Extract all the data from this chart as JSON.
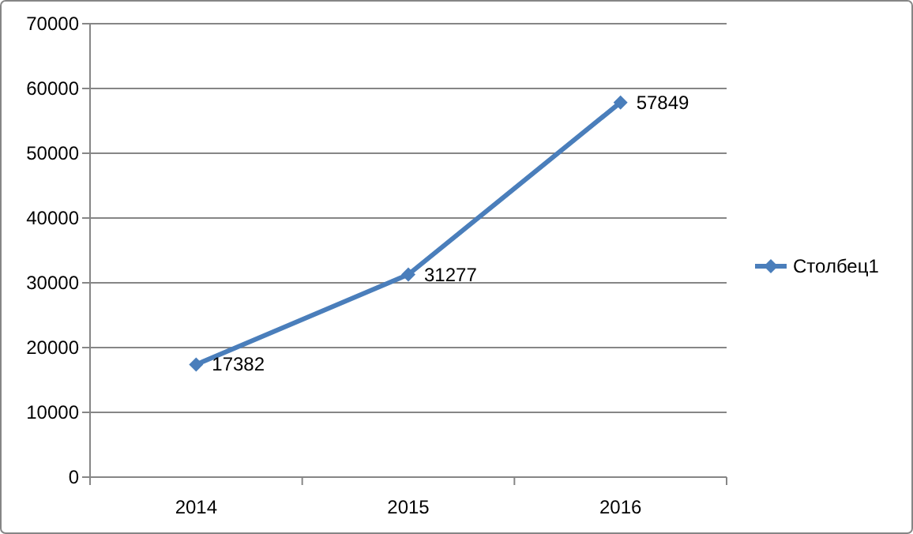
{
  "chart_data": {
    "type": "line",
    "categories": [
      "2014",
      "2015",
      "2016"
    ],
    "series": [
      {
        "name": "Столбец1",
        "color": "#4a7ebb",
        "values": [
          17382,
          31277,
          57849
        ]
      }
    ],
    "ylim": [
      0,
      70000
    ],
    "yticks": [
      0,
      10000,
      20000,
      30000,
      40000,
      50000,
      60000,
      70000
    ],
    "grid": "y",
    "legend": "right",
    "marker": "diamond",
    "data_labels": true
  }
}
